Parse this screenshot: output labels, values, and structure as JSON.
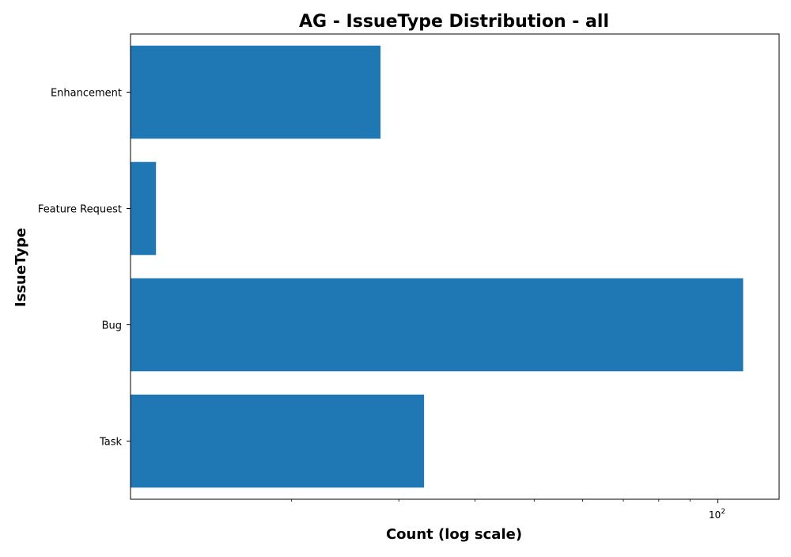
{
  "chart_data": {
    "type": "bar",
    "orientation": "horizontal",
    "title": "AG - IssueType Distribution - all",
    "xlabel": "Count (log scale)",
    "ylabel": "IssueType",
    "x_scale": "log",
    "xlim": [
      10.9,
      126
    ],
    "x_major_ticks": [
      {
        "value": 100,
        "base": "10",
        "exp": "2"
      }
    ],
    "x_minor_ticks": [
      20,
      30,
      40,
      50,
      60,
      70,
      80,
      90
    ],
    "categories": [
      "Enhancement",
      "Feature Request",
      "Bug",
      "Task"
    ],
    "values": [
      28,
      12,
      110,
      33
    ],
    "bar_color": "#1f77b4",
    "grid": false,
    "legend": "none"
  }
}
